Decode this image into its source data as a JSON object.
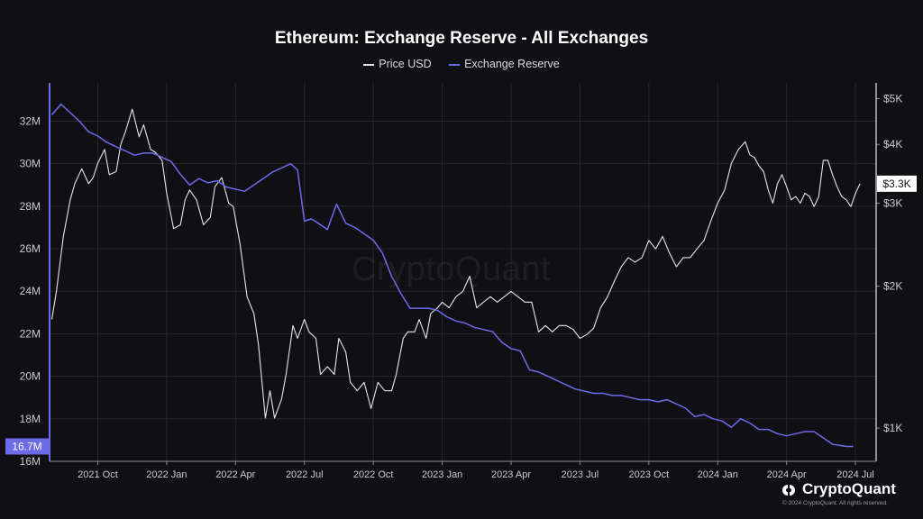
{
  "chart_data": {
    "type": "line",
    "title": "Ethereum: Exchange Reserve - All Exchanges",
    "legend_position": "top-center",
    "grid": true,
    "x_ticks": [
      "2021 Oct",
      "2022 Jan",
      "2022 Apr",
      "2022 Jul",
      "2022 Oct",
      "2023 Jan",
      "2023 Apr",
      "2023 Jul",
      "2023 Oct",
      "2024 Jan",
      "2024 Apr",
      "2024 Jul"
    ],
    "x_tick_months": [
      0,
      3,
      6,
      9,
      12,
      15,
      18,
      21,
      24,
      27,
      30,
      33
    ],
    "x_range": [
      -2.1,
      33.9
    ],
    "left_axis": {
      "range": [
        16,
        33.8
      ],
      "ticks": [
        "16M",
        "18M",
        "20M",
        "22M",
        "24M",
        "26M",
        "28M",
        "30M",
        "32M"
      ],
      "tick_values": [
        16,
        18,
        20,
        22,
        24,
        26,
        28,
        30,
        32
      ],
      "current_label": "16.7M",
      "current_value": 16.7
    },
    "right_axis": {
      "scale": "log",
      "range": [
        850,
        5400
      ],
      "ticks": [
        "$1K",
        "$2K",
        "$3K",
        "$4K",
        "$5K"
      ],
      "tick_values": [
        1000,
        2000,
        3000,
        4000,
        5000
      ],
      "current_label": "$3.3K",
      "current_value": 3300
    },
    "series": [
      {
        "name": "Price USD",
        "color": "#e6e6ea",
        "axis": "right",
        "x": [
          -2.0,
          -1.8,
          -1.5,
          -1.2,
          -1.0,
          -0.7,
          -0.4,
          -0.2,
          0.0,
          0.3,
          0.5,
          0.8,
          1.0,
          1.2,
          1.5,
          1.8,
          2.0,
          2.3,
          2.5,
          2.8,
          3.0,
          3.3,
          3.6,
          3.8,
          4.0,
          4.3,
          4.6,
          4.9,
          5.1,
          5.4,
          5.7,
          5.9,
          6.2,
          6.5,
          6.8,
          7.0,
          7.3,
          7.5,
          7.7,
          8.0,
          8.2,
          8.5,
          8.7,
          9.0,
          9.2,
          9.5,
          9.7,
          10.0,
          10.3,
          10.5,
          10.8,
          11.0,
          11.3,
          11.6,
          11.9,
          12.2,
          12.5,
          12.8,
          13.0,
          13.3,
          13.5,
          13.8,
          14.0,
          14.3,
          14.5,
          14.8,
          15.0,
          15.3,
          15.6,
          15.9,
          16.2,
          16.5,
          16.8,
          17.1,
          17.4,
          17.7,
          18.0,
          18.3,
          18.6,
          18.9,
          19.2,
          19.5,
          19.8,
          20.1,
          20.4,
          20.7,
          21.0,
          21.3,
          21.6,
          21.9,
          22.2,
          22.5,
          22.8,
          23.1,
          23.4,
          23.7,
          24.0,
          24.3,
          24.6,
          24.9,
          25.2,
          25.5,
          25.8,
          26.1,
          26.4,
          26.7,
          27.0,
          27.3,
          27.6,
          27.9,
          28.2,
          28.4,
          28.6,
          28.8,
          29.0,
          29.2,
          29.4,
          29.6,
          29.8,
          30.0,
          30.2,
          30.4,
          30.6,
          30.8,
          31.0,
          31.2,
          31.4,
          31.6,
          31.8,
          32.0,
          32.2,
          32.4,
          32.6,
          32.8,
          33.0,
          33.2
        ],
        "values": [
          1700,
          1950,
          2550,
          3050,
          3300,
          3550,
          3300,
          3400,
          3650,
          3900,
          3450,
          3500,
          4000,
          4250,
          4750,
          4150,
          4400,
          3900,
          3850,
          3700,
          3150,
          2650,
          2700,
          3050,
          3200,
          3050,
          2700,
          2800,
          3250,
          3400,
          3000,
          2950,
          2450,
          1900,
          1750,
          1500,
          1050,
          1200,
          1050,
          1150,
          1300,
          1650,
          1550,
          1700,
          1600,
          1550,
          1300,
          1350,
          1300,
          1550,
          1450,
          1250,
          1200,
          1250,
          1100,
          1250,
          1200,
          1200,
          1300,
          1550,
          1600,
          1600,
          1700,
          1550,
          1750,
          1800,
          1850,
          1800,
          1900,
          1950,
          2100,
          1800,
          1850,
          1900,
          1850,
          1900,
          1950,
          1900,
          1850,
          1850,
          1600,
          1650,
          1600,
          1650,
          1650,
          1620,
          1550,
          1580,
          1630,
          1800,
          1900,
          2050,
          2200,
          2300,
          2250,
          2300,
          2500,
          2400,
          2550,
          2350,
          2200,
          2300,
          2300,
          2400,
          2500,
          2750,
          3000,
          3200,
          3650,
          3900,
          4050,
          3800,
          3750,
          3600,
          3500,
          3200,
          3000,
          3300,
          3450,
          3250,
          3050,
          3100,
          3000,
          3150,
          3100,
          2950,
          3100,
          3700,
          3700,
          3450,
          3250,
          3100,
          3050,
          2950,
          3150,
          3300
        ]
      },
      {
        "name": "Exchange Reserve",
        "color": "#6b6be8",
        "axis": "left",
        "x": [
          -2.0,
          -1.6,
          -1.2,
          -0.8,
          -0.4,
          0.0,
          0.4,
          0.8,
          1.2,
          1.6,
          2.0,
          2.4,
          2.8,
          3.2,
          3.6,
          4.0,
          4.4,
          4.8,
          5.2,
          5.6,
          6.0,
          6.4,
          6.8,
          7.2,
          7.6,
          8.0,
          8.4,
          8.7,
          9.0,
          9.3,
          9.6,
          10.0,
          10.4,
          10.8,
          11.2,
          11.6,
          12.0,
          12.4,
          12.8,
          13.2,
          13.6,
          14.0,
          14.4,
          14.8,
          15.2,
          15.6,
          16.0,
          16.4,
          16.8,
          17.2,
          17.6,
          18.0,
          18.4,
          18.8,
          19.2,
          19.6,
          20.0,
          20.4,
          20.8,
          21.2,
          21.6,
          22.0,
          22.4,
          22.8,
          23.2,
          23.6,
          24.0,
          24.4,
          24.8,
          25.2,
          25.6,
          26.0,
          26.4,
          26.8,
          27.2,
          27.6,
          28.0,
          28.4,
          28.8,
          29.2,
          29.6,
          30.0,
          30.4,
          30.8,
          31.2,
          31.6,
          32.0,
          32.3,
          32.6,
          32.9
        ],
        "values": [
          32.3,
          32.8,
          32.4,
          32.0,
          31.5,
          31.3,
          31.0,
          30.8,
          30.6,
          30.4,
          30.5,
          30.5,
          30.3,
          30.1,
          29.5,
          29.0,
          29.3,
          29.1,
          29.2,
          28.9,
          28.8,
          28.7,
          29.0,
          29.3,
          29.6,
          29.8,
          30.0,
          29.7,
          27.3,
          27.4,
          27.2,
          26.9,
          28.1,
          27.2,
          27.0,
          26.7,
          26.4,
          25.8,
          24.7,
          23.9,
          23.2,
          23.2,
          23.2,
          23.1,
          22.8,
          22.6,
          22.5,
          22.3,
          22.2,
          22.1,
          21.6,
          21.3,
          21.2,
          20.3,
          20.2,
          20.0,
          19.8,
          19.6,
          19.4,
          19.3,
          19.2,
          19.2,
          19.1,
          19.1,
          19.0,
          18.9,
          18.9,
          18.8,
          18.9,
          18.7,
          18.5,
          18.1,
          18.2,
          18.0,
          17.9,
          17.6,
          18.0,
          17.8,
          17.5,
          17.5,
          17.3,
          17.2,
          17.3,
          17.4,
          17.4,
          17.1,
          16.8,
          16.75,
          16.7,
          16.7
        ]
      }
    ]
  },
  "watermark": "CryptoQuant",
  "brand": {
    "name": "CryptoQuant",
    "copyright": "© 2024 CryptoQuant. All rights reserved."
  }
}
